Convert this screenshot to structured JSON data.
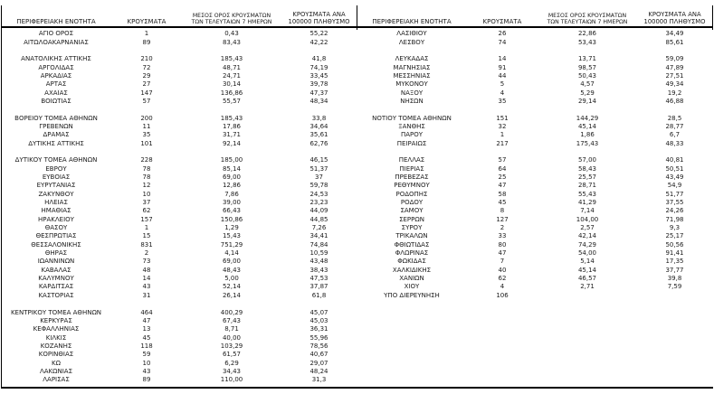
{
  "headers": {
    "region": "ΠΕΡΙΦΕΡΕΙΑΚΗ ΕΝΟΤΗΤΑ",
    "cases": "ΚΡΟΥΣΜΑΤΑ",
    "avg7": "ΜΕΣΟΣ ΟΡΟΣ ΚΡΟΥΣΜΑΤΩΝ ΤΩΝ ΤΕΛΕΥΤΑΙΩΝ 7 ΗΜΕΡΩΝ",
    "per100k": "ΚΡΟΥΣΜΑΤΑ ΑΝΑ 100000 ΠΛΗΘΥΣΜΟ"
  },
  "tables": {
    "left": {
      "groups": [
        [
          [
            "ΑΓΙΟ ΟΡΟΣ",
            "1",
            "0,43",
            "55,22"
          ],
          [
            "ΑΙΤΩΛΟΑΚΑΡΝΑΝΙΑΣ",
            "89",
            "83,43",
            "42,22"
          ]
        ],
        [
          [
            "ΑΝΑΤΟΛΙΚΗΣ ΑΤΤΙΚΗΣ",
            "210",
            "185,43",
            "41,8"
          ],
          [
            "ΑΡΓΟΛΙΔΑΣ",
            "72",
            "48,71",
            "74,19"
          ],
          [
            "ΑΡΚΑΔΙΑΣ",
            "29",
            "24,71",
            "33,45"
          ],
          [
            "ΑΡΤΑΣ",
            "27",
            "30,14",
            "39,78"
          ],
          [
            "ΑΧΑΪΑΣ",
            "147",
            "136,86",
            "47,37"
          ],
          [
            "ΒΟΙΩΤΙΑΣ",
            "57",
            "55,57",
            "48,34"
          ]
        ],
        [
          [
            "ΒΟΡΕΙΟΥ ΤΟΜΕΑ ΑΘΗΝΩΝ",
            "200",
            "185,43",
            "33,8"
          ],
          [
            "ΓΡΕΒΕΝΩΝ",
            "11",
            "17,86",
            "34,64"
          ],
          [
            "ΔΡΑΜΑΣ",
            "35",
            "31,71",
            "35,61"
          ],
          [
            "ΔΥΤΙΚΗΣ ΑΤΤΙΚΗΣ",
            "101",
            "92,14",
            "62,76"
          ]
        ],
        [
          [
            "ΔΥΤΙΚΟΥ ΤΟΜΕΑ ΑΘΗΝΩΝ",
            "228",
            "185,00",
            "46,15"
          ],
          [
            "ΕΒΡΟΥ",
            "78",
            "85,14",
            "51,37"
          ],
          [
            "ΕΥΒΟΙΑΣ",
            "78",
            "69,00",
            "37"
          ],
          [
            "ΕΥΡΥΤΑΝΙΑΣ",
            "12",
            "12,86",
            "59,78"
          ],
          [
            "ΖΑΚΥΝΘΟΥ",
            "10",
            "7,86",
            "24,53"
          ],
          [
            "ΗΛΕΙΑΣ",
            "37",
            "39,00",
            "23,23"
          ],
          [
            "ΗΜΑΘΙΑΣ",
            "62",
            "66,43",
            "44,09"
          ],
          [
            "ΗΡΑΚΛΕΙΟΥ",
            "157",
            "150,86",
            "44,85"
          ],
          [
            "ΘΑΣΟΥ",
            "1",
            "1,29",
            "7,26"
          ],
          [
            "ΘΕΣΠΡΩΤΙΑΣ",
            "15",
            "15,43",
            "34,41"
          ],
          [
            "ΘΕΣΣΑΛΟΝΙΚΗΣ",
            "831",
            "751,29",
            "74,84"
          ],
          [
            "ΘΗΡΑΣ",
            "2",
            "4,14",
            "10,59"
          ],
          [
            "ΙΩΑΝΝΙΝΩΝ",
            "73",
            "69,00",
            "43,48"
          ],
          [
            "ΚΑΒΑΛΑΣ",
            "48",
            "48,43",
            "38,43"
          ],
          [
            "ΚΑΛΥΜΝΟΥ",
            "14",
            "5,00",
            "47,53"
          ],
          [
            "ΚΑΡΔΙΤΣΑΣ",
            "43",
            "52,14",
            "37,87"
          ],
          [
            "ΚΑΣΤΟΡΙΑΣ",
            "31",
            "26,14",
            "61,8"
          ]
        ],
        [
          [
            "ΚΕΝΤΡΙΚΟΥ ΤΟΜΕΑ ΑΘΗΝΩΝ",
            "464",
            "400,29",
            "45,07"
          ],
          [
            "ΚΕΡΚΥΡΑΣ",
            "47",
            "67,43",
            "45,03"
          ],
          [
            "ΚΕΦΑΛΛΗΝΙΑΣ",
            "13",
            "8,71",
            "36,31"
          ],
          [
            "ΚΙΛΚΙΣ",
            "45",
            "40,00",
            "55,96"
          ],
          [
            "ΚΟΖΑΝΗΣ",
            "118",
            "103,29",
            "78,56"
          ],
          [
            "ΚΟΡΙΝΘΙΑΣ",
            "59",
            "61,57",
            "40,67"
          ],
          [
            "ΚΩ",
            "10",
            "6,29",
            "29,07"
          ],
          [
            "ΛΑΚΩΝΙΑΣ",
            "43",
            "34,43",
            "48,24"
          ],
          [
            "ΛΑΡΙΣΑΣ",
            "89",
            "110,00",
            "31,3"
          ]
        ]
      ]
    },
    "right": {
      "groups": [
        [
          [
            "ΛΑΣΙΘΙΟΥ",
            "26",
            "22,86",
            "34,49"
          ],
          [
            "ΛΕΣΒΟΥ",
            "74",
            "53,43",
            "85,61"
          ]
        ],
        [
          [
            "ΛΕΥΚΑΔΑΣ",
            "14",
            "13,71",
            "59,09"
          ],
          [
            "ΜΑΓΝΗΣΙΑΣ",
            "91",
            "98,57",
            "47,89"
          ],
          [
            "ΜΕΣΣΗΝΙΑΣ",
            "44",
            "50,43",
            "27,51"
          ],
          [
            "ΜΥΚΟΝΟΥ",
            "5",
            "4,57",
            "49,34"
          ],
          [
            "ΝΑΞΟΥ",
            "4",
            "5,29",
            "19,2"
          ],
          [
            "ΝΗΣΩΝ",
            "35",
            "29,14",
            "46,88"
          ]
        ],
        [
          [
            "ΝΟΤΙΟΥ ΤΟΜΕΑ ΑΘΗΝΩΝ",
            "151",
            "144,29",
            "28,5"
          ],
          [
            "ΞΑΝΘΗΣ",
            "32",
            "45,14",
            "28,77"
          ],
          [
            "ΠΑΡΟΥ",
            "1",
            "1,86",
            "6,7"
          ],
          [
            "ΠΕΙΡΑΙΩΣ",
            "217",
            "175,43",
            "48,33"
          ]
        ],
        [
          [
            "ΠΕΛΛΑΣ",
            "57",
            "57,00",
            "40,81"
          ],
          [
            "ΠΙΕΡΙΑΣ",
            "64",
            "58,43",
            "50,51"
          ],
          [
            "ΠΡΕΒΕΖΑΣ",
            "25",
            "25,57",
            "43,49"
          ],
          [
            "ΡΕΘΥΜΝΟΥ",
            "47",
            "28,71",
            "54,9"
          ],
          [
            "ΡΟΔΟΠΗΣ",
            "58",
            "55,43",
            "51,77"
          ],
          [
            "ΡΟΔΟΥ",
            "45",
            "41,29",
            "37,55"
          ],
          [
            "ΣΑΜΟΥ",
            "8",
            "7,14",
            "24,26"
          ],
          [
            "ΣΕΡΡΩΝ",
            "127",
            "104,00",
            "71,98"
          ],
          [
            "ΣΥΡΟΥ",
            "2",
            "2,57",
            "9,3"
          ],
          [
            "ΤΡΙΚΑΛΩΝ",
            "33",
            "42,14",
            "25,17"
          ],
          [
            "ΦΘΙΩΤΙΔΑΣ",
            "80",
            "74,29",
            "50,56"
          ],
          [
            "ΦΛΩΡΙΝΑΣ",
            "47",
            "54,00",
            "91,41"
          ],
          [
            "ΦΩΚΙΔΑΣ",
            "7",
            "5,14",
            "17,35"
          ],
          [
            "ΧΑΛΚΙΔΙΚΗΣ",
            "40",
            "45,14",
            "37,77"
          ],
          [
            "ΧΑΝΙΩΝ",
            "62",
            "46,57",
            "39,8"
          ],
          [
            "ΧΙΟΥ",
            "4",
            "2,71",
            "7,59"
          ],
          [
            "ΥΠΟ ΔΙΕΡΕΥΝΗΣΗ",
            "106",
            "",
            ""
          ]
        ]
      ]
    }
  }
}
